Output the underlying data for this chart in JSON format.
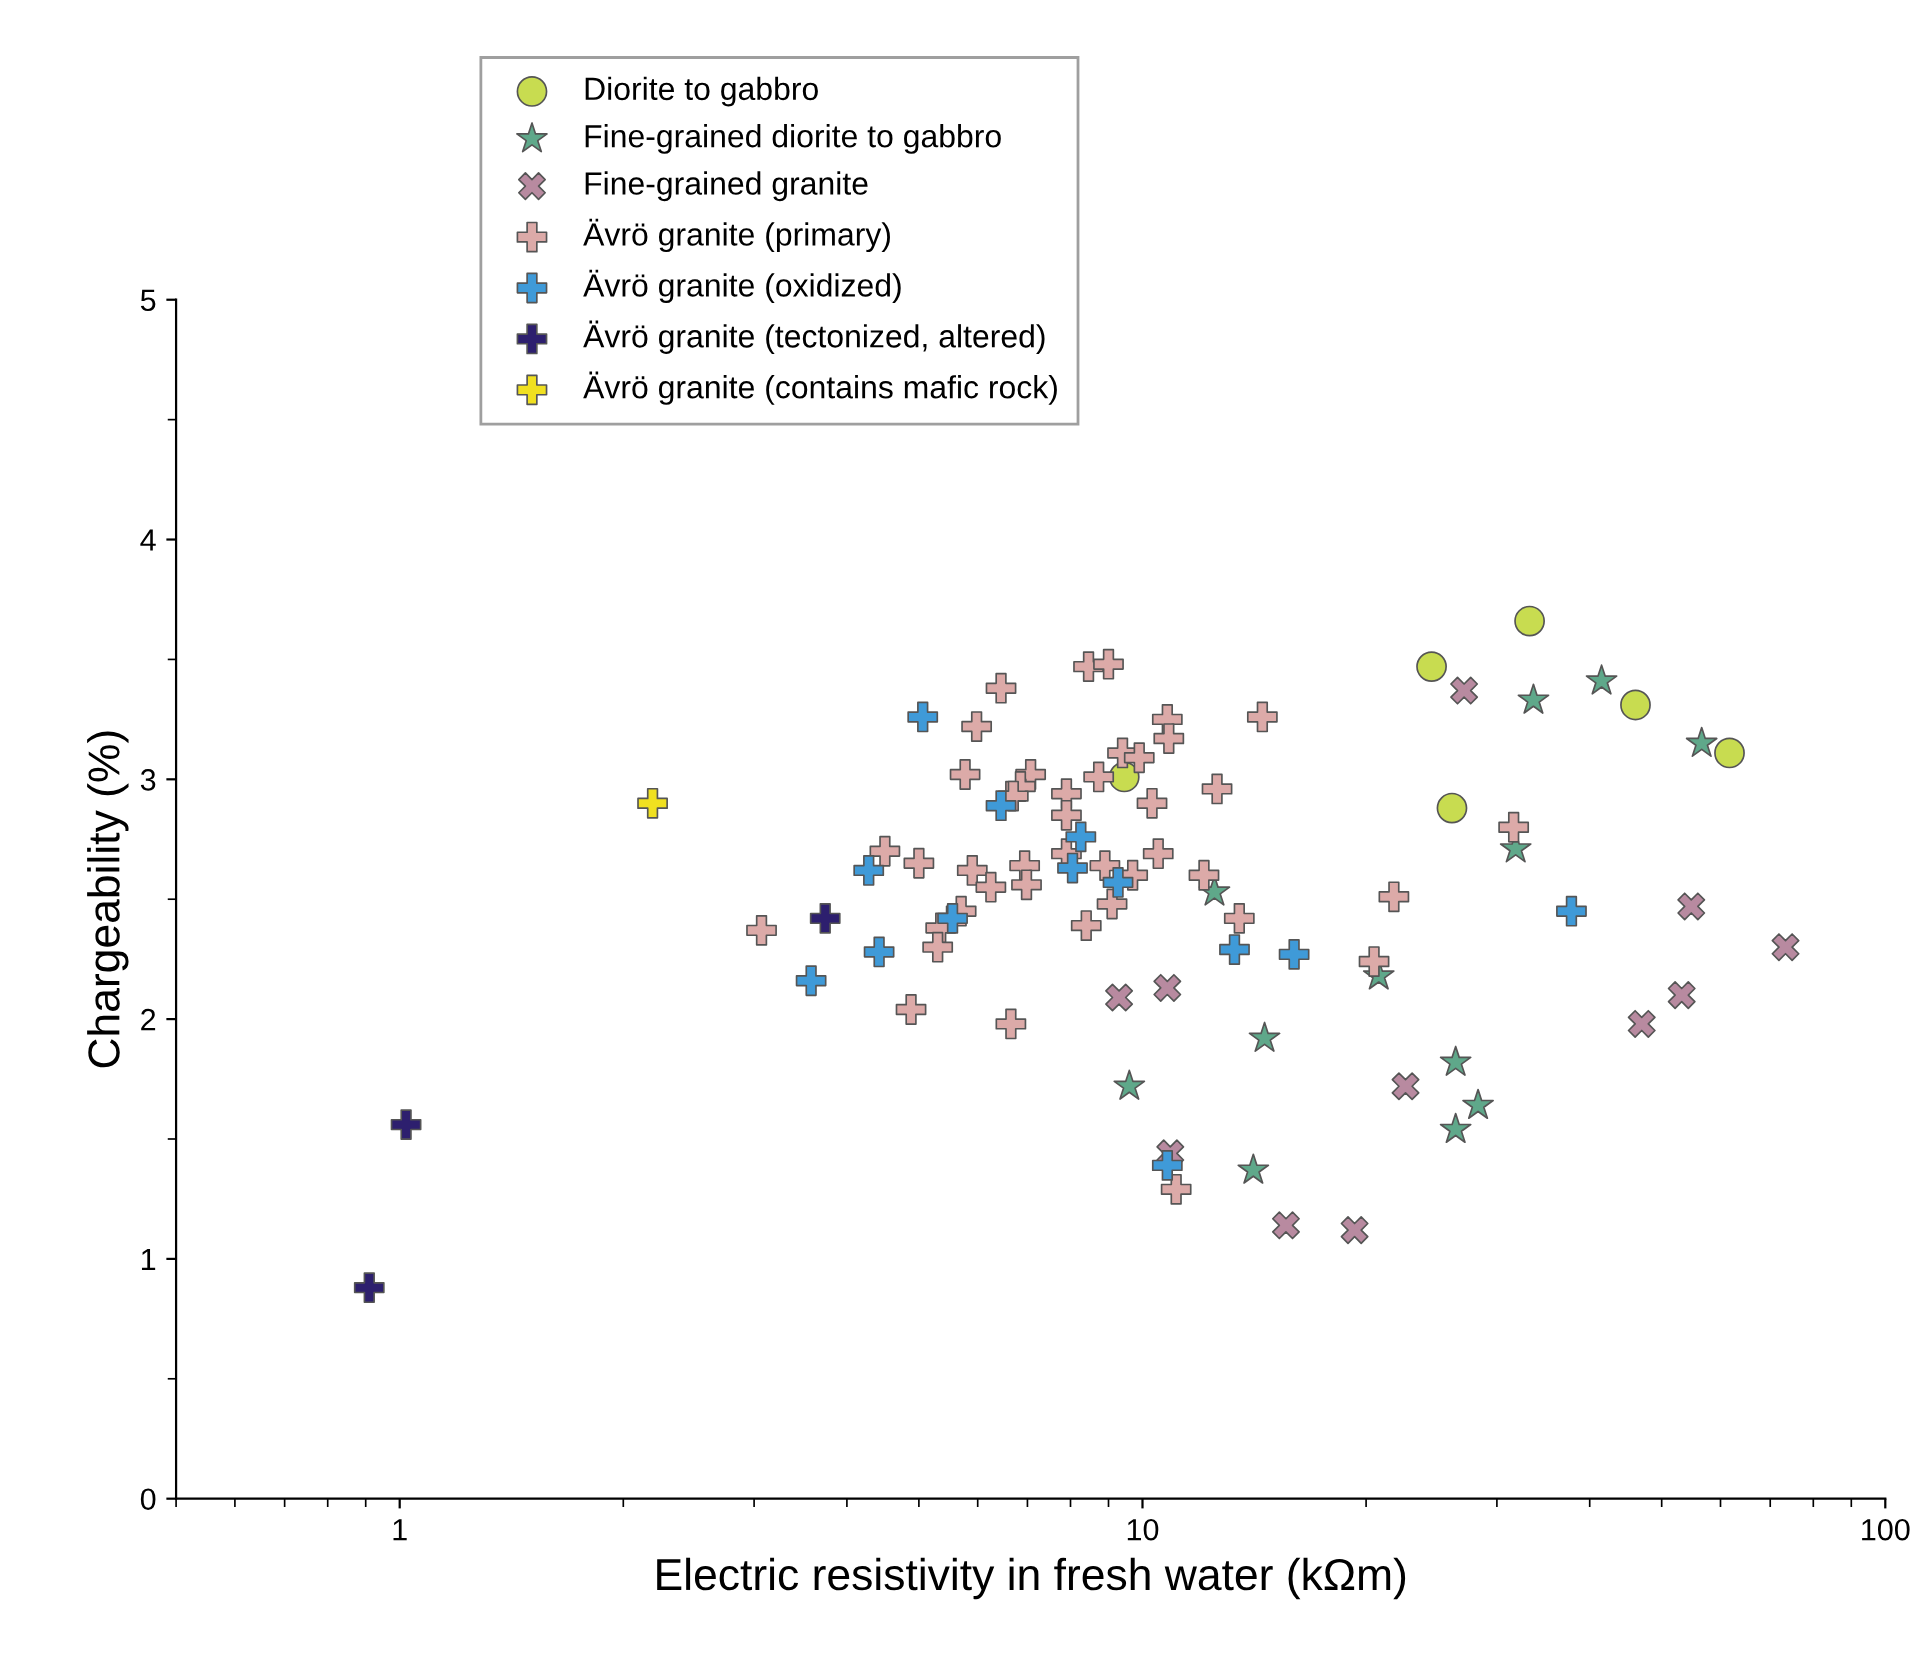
{
  "chart_data": {
    "type": "scatter",
    "xlabel": "Electric resistivity in fresh water (kΩm)",
    "ylabel": "Chargeability (%)",
    "log": "x",
    "xlim": [
      0.5,
      100
    ],
    "xticks": [
      1,
      10,
      100
    ],
    "ylim": [
      0,
      5
    ],
    "yticks": [
      0,
      1,
      2,
      3,
      4,
      5
    ],
    "grid": false,
    "legend": "top",
    "series": [
      {
        "name": "Diorite to gabbro",
        "color": "#c8dc50",
        "marker": "circle",
        "x": [
          9.45,
          33.2,
          24.5,
          46.1,
          61.7,
          26.1
        ],
        "values": [
          3.01,
          3.66,
          3.47,
          3.31,
          3.11,
          2.88
        ]
      },
      {
        "name": "Fine-grained diorite to gabbro",
        "color": "#5fa88a",
        "marker": "star",
        "x": [
          33.6,
          41.5,
          56.6,
          31.8,
          20.8,
          26.4,
          28.3,
          26.4,
          12.5,
          14.6,
          9.6,
          14.1
        ],
        "values": [
          3.33,
          3.41,
          3.15,
          2.71,
          2.18,
          1.82,
          1.64,
          1.54,
          2.53,
          1.92,
          1.72,
          1.37
        ]
      },
      {
        "name": "Fine-grained granite",
        "color": "#b88aa0",
        "marker": "x",
        "x": [
          27.1,
          54.8,
          73.4,
          53.2,
          47.0,
          22.6,
          19.3,
          15.6,
          9.3,
          10.8,
          10.9
        ],
        "values": [
          3.37,
          2.47,
          2.3,
          2.1,
          1.98,
          1.72,
          1.12,
          1.14,
          2.09,
          2.13,
          1.44
        ]
      },
      {
        "name": "Ävrö granite (primary)",
        "color": "#dcaaa8",
        "marker": "cross",
        "x": [
          3.07,
          8.46,
          9.0,
          6.45,
          5.98,
          10.8,
          10.85,
          14.5,
          5.77,
          7.07,
          6.85,
          6.7,
          9.4,
          9.9,
          8.73,
          7.9,
          7.9,
          10.3,
          12.6,
          7.9,
          10.5,
          4.5,
          5.0,
          5.9,
          6.25,
          6.94,
          6.98,
          8.9,
          9.7,
          9.1,
          12.1,
          13.5,
          8.4,
          5.7,
          5.35,
          5.3,
          4.88,
          6.65,
          11.1,
          31.6,
          21.8,
          20.5
        ],
        "values": [
          2.37,
          3.47,
          3.48,
          3.38,
          3.22,
          3.25,
          3.17,
          3.26,
          3.02,
          3.02,
          2.97,
          2.93,
          3.11,
          3.09,
          3.01,
          2.94,
          2.85,
          2.9,
          2.96,
          2.69,
          2.69,
          2.7,
          2.65,
          2.62,
          2.55,
          2.64,
          2.56,
          2.64,
          2.6,
          2.48,
          2.6,
          2.42,
          2.39,
          2.45,
          2.38,
          2.3,
          2.04,
          1.98,
          1.29,
          2.8,
          2.51,
          2.24
        ]
      },
      {
        "name": "Ävrö granite (oxidized)",
        "color": "#3f9ad8",
        "marker": "cross",
        "x": [
          5.06,
          6.45,
          8.26,
          8.05,
          9.27,
          4.28,
          5.55,
          4.42,
          3.58,
          13.3,
          16.0,
          10.8,
          37.8
        ],
        "values": [
          3.26,
          2.89,
          2.76,
          2.63,
          2.57,
          2.62,
          2.42,
          2.28,
          2.16,
          2.29,
          2.27,
          1.39,
          2.45
        ]
      },
      {
        "name": "Ävrö granite (tectonized, altered)",
        "color": "#2d1f6e",
        "marker": "cross",
        "x": [
          1.02,
          0.91,
          3.74
        ],
        "values": [
          1.56,
          0.88,
          2.42
        ]
      },
      {
        "name": "Ävrö granite (contains mafic rock)",
        "color": "#f0e020",
        "marker": "cross",
        "x": [
          2.19
        ],
        "values": [
          2.9
        ]
      }
    ]
  }
}
